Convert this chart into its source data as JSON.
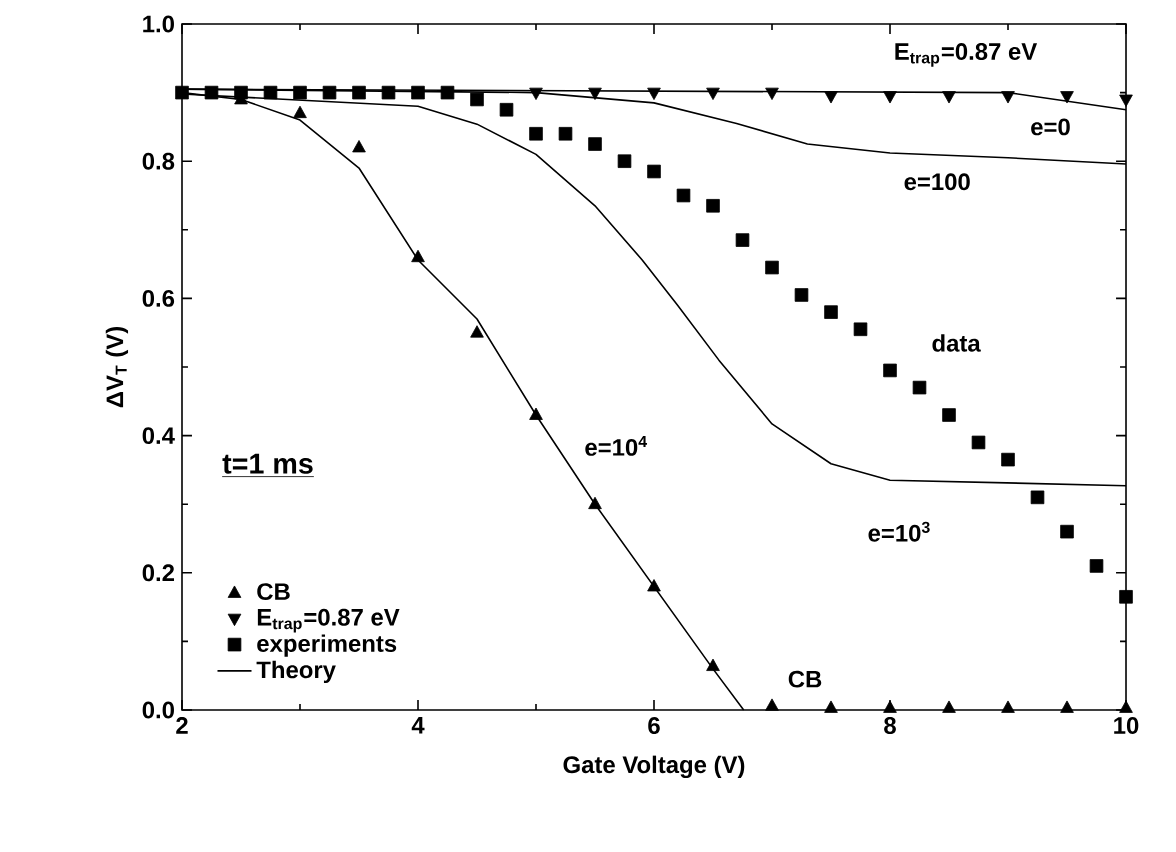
{
  "chart_data": {
    "type": "scatter",
    "xlabel": "Gate Voltage (V)",
    "ylabel": "ΔV$_{T}$ (V)",
    "legend_title": "t=1 ms",
    "legend": "bottom left",
    "xlim": [
      2,
      10
    ],
    "xticks": [
      2,
      4,
      6,
      8,
      10
    ],
    "ylim": [
      0,
      1
    ],
    "yticks": [
      {
        "value": 0,
        "label": "0.0"
      },
      {
        "value": 0.2,
        "label": "0.2"
      },
      {
        "value": 0.4,
        "label": "0.4"
      },
      {
        "value": 0.6,
        "label": "0.6"
      },
      {
        "value": 0.8,
        "label": "0.8"
      },
      {
        "value": 1,
        "label": "1.0"
      }
    ],
    "series": [
      {
        "name": "CB",
        "marker": "triangle",
        "color": "#000000",
        "x": [
          2.5,
          3,
          3.5,
          4,
          4.5,
          5,
          5.5,
          6,
          6.5,
          7,
          7.5,
          8,
          8.5,
          9,
          9.5,
          10
        ],
        "values": [
          0.89,
          0.87,
          0.82,
          0.66,
          0.55,
          0.43,
          0.3,
          0.18,
          0.064,
          0.006,
          0.003,
          0.003,
          0.003,
          0.003,
          0.003,
          0.003
        ]
      },
      {
        "name": "E$_{trap}$=0.87 eV",
        "marker": "triangle_down",
        "color": "#000000",
        "x": [
          5,
          5.5,
          6,
          6.5,
          7,
          7.5,
          8,
          8.5,
          9,
          9.5,
          10
        ],
        "values": [
          0.9,
          0.9,
          0.9,
          0.9,
          0.9,
          0.895,
          0.895,
          0.895,
          0.895,
          0.895,
          0.89
        ]
      },
      {
        "name": "experiments",
        "marker": "square",
        "color": "#000000",
        "x": [
          2,
          2.25,
          2.5,
          2.75,
          3,
          3.25,
          3.5,
          3.75,
          4,
          4.25,
          4.5,
          4.75,
          5,
          5.25,
          5.5,
          5.75,
          6,
          6.25,
          6.5,
          6.75,
          7,
          7.25,
          7.5,
          7.75,
          8,
          8.25,
          8.5,
          8.75,
          9,
          9.25,
          9.5,
          9.75,
          10
        ],
        "values": [
          0.9,
          0.9,
          0.9,
          0.9,
          0.9,
          0.9,
          0.9,
          0.9,
          0.9,
          0.9,
          0.89,
          0.875,
          0.84,
          0.84,
          0.825,
          0.8,
          0.785,
          0.75,
          0.735,
          0.685,
          0.645,
          0.605,
          0.58,
          0.555,
          0.495,
          0.47,
          0.43,
          0.39,
          0.365,
          0.31,
          0.26,
          0.21,
          0.165
        ]
      },
      {
        "name": "Theory",
        "type": "line",
        "marker": "none",
        "line_style": "solid",
        "color": "#000000",
        "x": [
          2,
          2.5,
          3,
          3.5,
          4,
          4.5,
          5,
          5.5,
          6,
          6.5,
          6.76
        ],
        "values": [
          0.9,
          0.89,
          0.86,
          0.79,
          0.656,
          0.57,
          0.43,
          0.3,
          0.18,
          0.06,
          0
        ]
      },
      {
        "type": "line",
        "marker": "none",
        "line_style": "solid",
        "color": "#000000",
        "x": [
          2,
          9,
          10
        ],
        "values": [
          0.905,
          0.9,
          0.875
        ]
      },
      {
        "type": "line",
        "marker": "none",
        "line_style": "solid",
        "color": "#000000",
        "x": [
          2,
          5,
          6,
          6.7,
          7.3,
          8,
          9,
          10
        ],
        "values": [
          0.905,
          0.9,
          0.885,
          0.855,
          0.825,
          0.812,
          0.805,
          0.796
        ]
      },
      {
        "type": "line",
        "marker": "none",
        "line_style": "solid",
        "color": "#000000",
        "x": [
          2,
          4,
          4.5,
          5,
          5.5,
          5.9,
          6.2,
          6.55,
          7,
          7.5,
          8,
          10
        ],
        "values": [
          0.898,
          0.88,
          0.854,
          0.81,
          0.735,
          0.656,
          0.59,
          0.51,
          0.417,
          0.359,
          0.335,
          0.327
        ]
      }
    ],
    "annotations": [
      "E$_{trap}$=0.87 eV",
      "e=0",
      "e=100",
      "data",
      "e=10$^{4}$",
      "e=10$^{3}$",
      "CB"
    ]
  }
}
